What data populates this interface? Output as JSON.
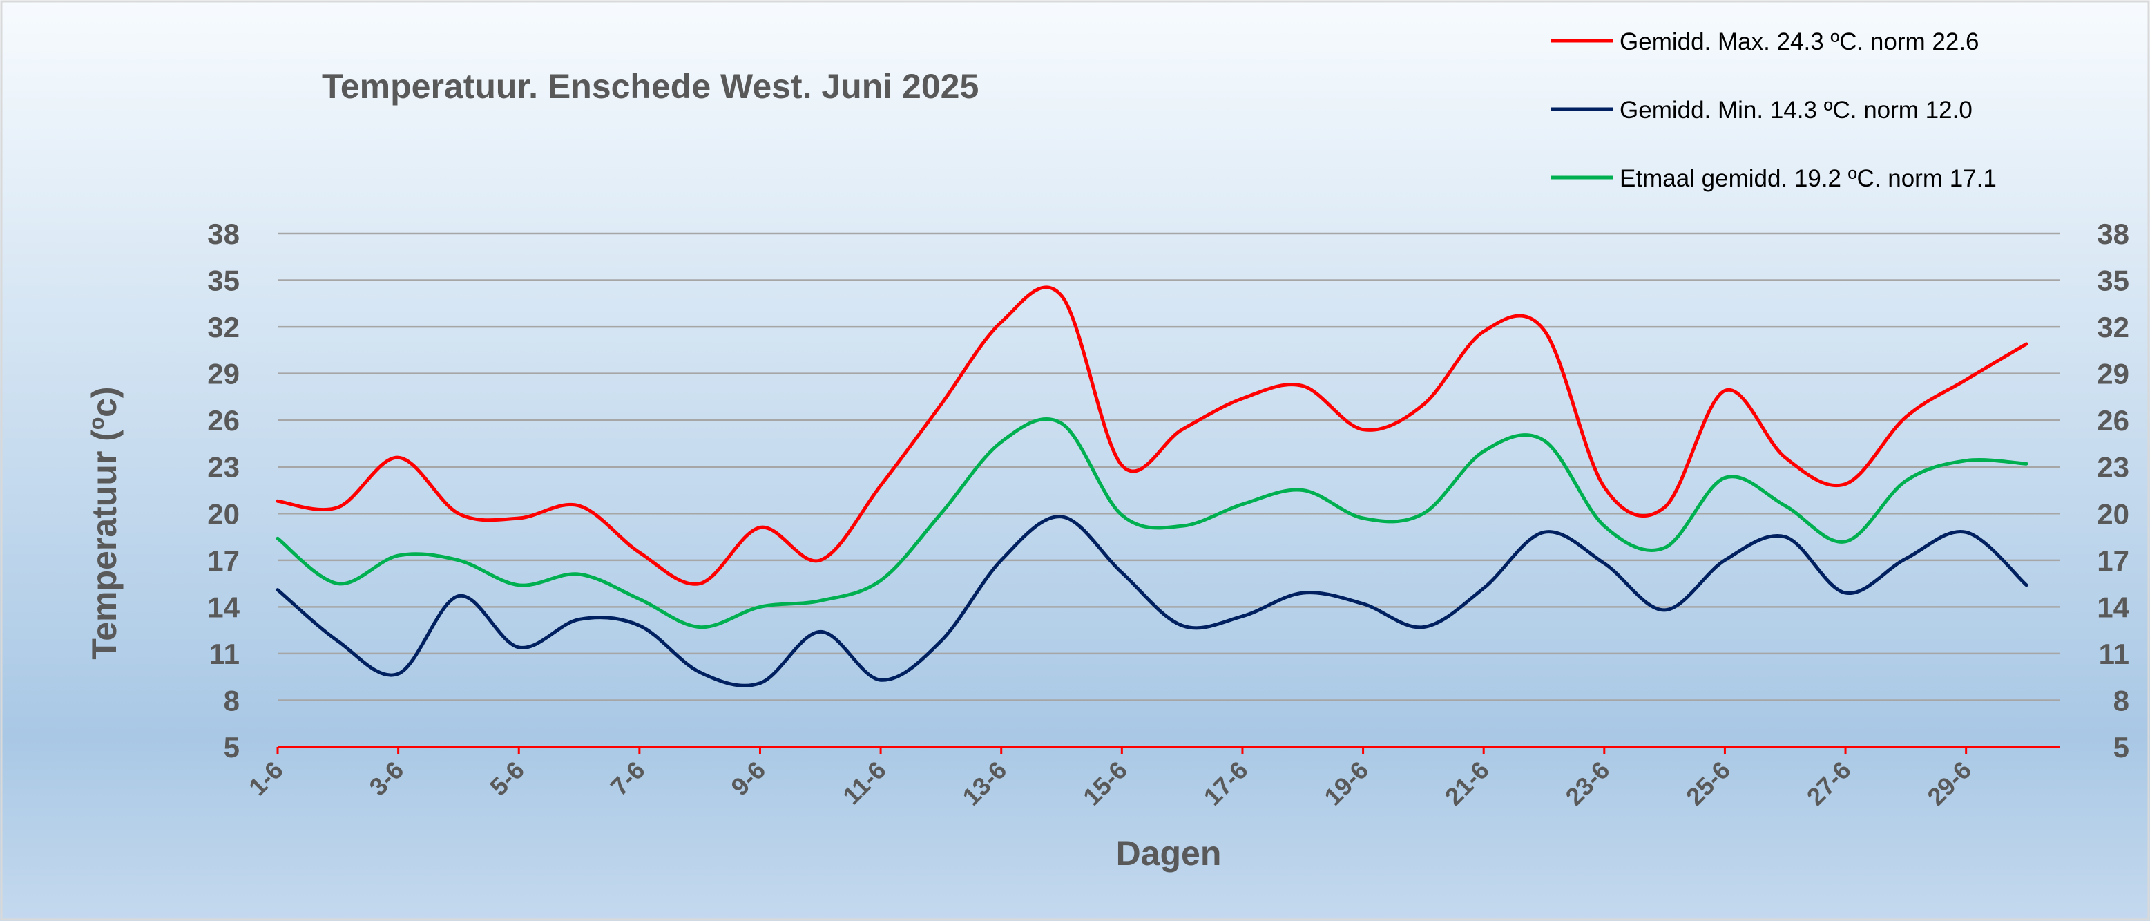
{
  "chart_data": {
    "type": "line",
    "title": "Temperatuur. Enschede West. Juni 2025",
    "xlabel": "Dagen",
    "ylabel": "Temperatuur (ºc)",
    "x": [
      1,
      2,
      3,
      4,
      5,
      6,
      7,
      8,
      9,
      10,
      11,
      12,
      13,
      14,
      15,
      16,
      17,
      18,
      19,
      20,
      21,
      22,
      23,
      24,
      25,
      26,
      27,
      28,
      29,
      30
    ],
    "x_tick_labels": [
      "1-6",
      "3-6",
      "5-6",
      "7-6",
      "9-6",
      "11-6",
      "13-6",
      "15-6",
      "17-6",
      "19-6",
      "21-6",
      "23-6",
      "25-6",
      "27-6",
      "29-6"
    ],
    "x_tick_days": [
      1,
      3,
      5,
      7,
      9,
      11,
      13,
      15,
      17,
      19,
      21,
      23,
      25,
      27,
      29
    ],
    "ylim": [
      5,
      38
    ],
    "y_ticks": [
      5,
      8,
      11,
      14,
      17,
      20,
      23,
      26,
      29,
      32,
      35,
      38
    ],
    "grid": "horizontal",
    "legend_position": "top-right",
    "series": [
      {
        "name": "Gemidd. Max. 24.3  ºC. norm 22.6",
        "color": "#FF0000",
        "values": [
          20.8,
          20.4,
          23.6,
          20.0,
          19.7,
          20.5,
          17.5,
          15.5,
          19.1,
          17.0,
          21.8,
          27.0,
          32.3,
          34.0,
          23.1,
          25.4,
          27.4,
          28.2,
          25.4,
          27.0,
          31.7,
          31.8,
          21.7,
          20.4,
          27.9,
          23.6,
          21.9,
          26.2,
          28.6,
          30.9
        ]
      },
      {
        "name": "Gemidd. Min. 14.3  ºC. norm 12.0",
        "color": "#002060",
        "values": [
          15.1,
          11.8,
          9.7,
          14.7,
          11.4,
          13.2,
          12.8,
          9.8,
          9.1,
          12.4,
          9.3,
          11.8,
          17.0,
          19.8,
          16.2,
          12.8,
          13.4,
          14.9,
          14.2,
          12.7,
          15.2,
          18.8,
          16.8,
          13.8,
          17.0,
          18.5,
          14.9,
          17.1,
          18.8,
          15.4
        ]
      },
      {
        "name": "Etmaal gemidd. 19.2  ºC. norm 17.1",
        "color": "#00B050",
        "values": [
          18.4,
          15.5,
          17.3,
          17.0,
          15.4,
          16.1,
          14.5,
          12.7,
          14.0,
          14.4,
          15.7,
          20.0,
          24.6,
          25.8,
          19.9,
          19.2,
          20.6,
          21.5,
          19.7,
          20.0,
          24.0,
          24.7,
          19.2,
          17.8,
          22.3,
          20.5,
          18.2,
          22.1,
          23.4,
          23.2
        ]
      }
    ],
    "colors": {
      "background_top": "#F7FBFE",
      "background_bottom": "#A9C8E5",
      "gridline": "#A6A6A6",
      "x_axis_line": "#FF0000",
      "label_text": "#595959"
    }
  }
}
